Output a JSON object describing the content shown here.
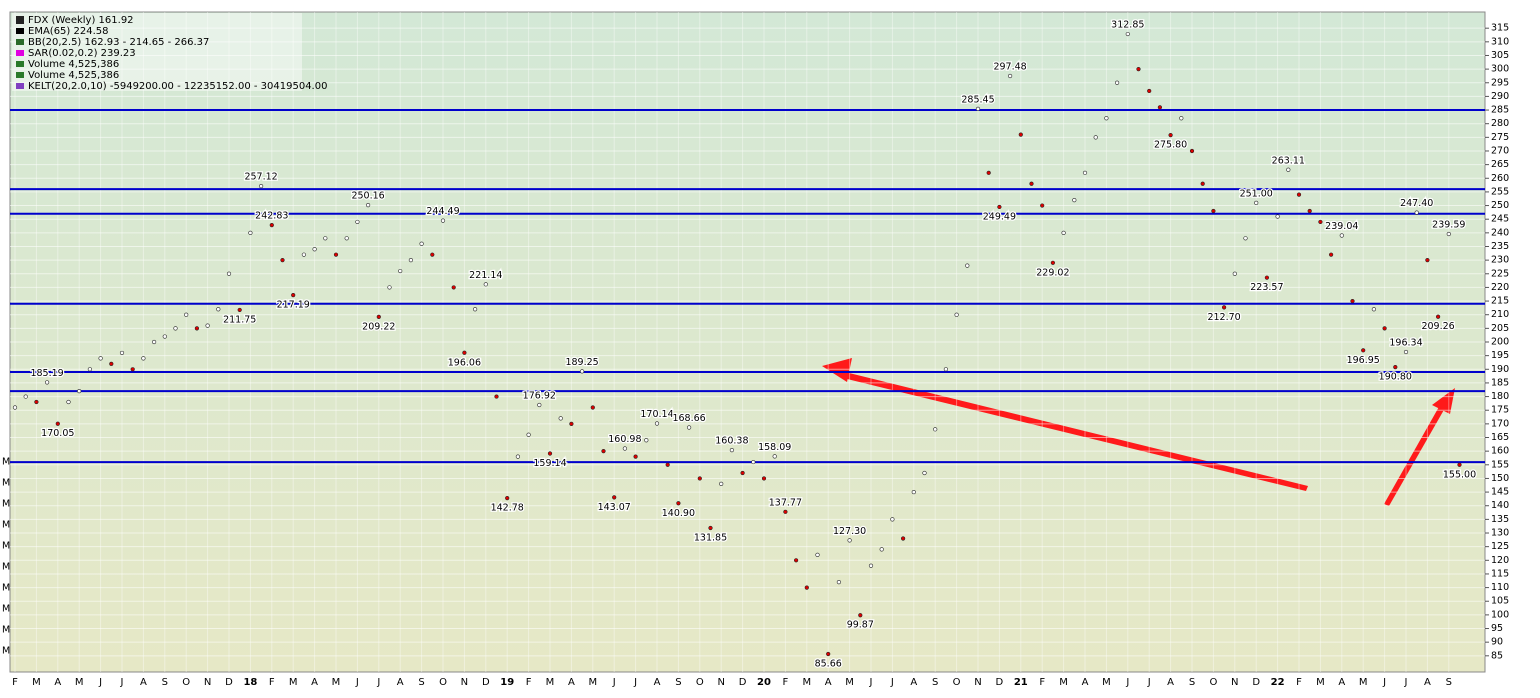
{
  "chart_data": {
    "type": "line",
    "categories": [
      "F",
      null,
      "M",
      null,
      "A",
      null,
      "M",
      null,
      "J",
      null,
      "J",
      null,
      "A",
      null,
      "S",
      null,
      "O",
      null,
      "N",
      null,
      "D",
      null,
      "18",
      null,
      "F",
      null,
      "M",
      null,
      "A",
      null,
      "M",
      null,
      "J",
      null,
      "J",
      null,
      "A",
      null,
      "S",
      null,
      "O",
      null,
      "N",
      null,
      "D",
      null,
      "19",
      null,
      "F",
      null,
      "M",
      null,
      "A",
      null,
      "M",
      null,
      "J",
      null,
      "J",
      null,
      "A",
      null,
      "S",
      null,
      "O",
      null,
      "N",
      null,
      "D",
      null,
      "20",
      null,
      "F",
      null,
      "M",
      null,
      "A",
      null,
      "M",
      null,
      "J",
      null,
      "J",
      null,
      "A",
      null,
      "S",
      null,
      "O",
      null,
      "N",
      null,
      "D",
      null,
      "21",
      null,
      "F",
      null,
      "M",
      null,
      "A",
      null,
      "M",
      null,
      "J",
      null,
      "J",
      null,
      "A",
      null,
      "S",
      null,
      "O",
      null,
      "N",
      null,
      "D",
      null,
      "22",
      null,
      "F",
      null,
      "M",
      null,
      "A",
      null,
      "M",
      null,
      "J",
      null,
      "J",
      null,
      "A",
      null,
      "S",
      null
    ],
    "series": [
      {
        "name": "FDX (Weekly) 161.92",
        "color": "#222222",
        "values": [
          176,
          180,
          178,
          185.19,
          170.05,
          178,
          182,
          190,
          194,
          192,
          196,
          190,
          194,
          200,
          202,
          205,
          210,
          205,
          206,
          212,
          225,
          211.75,
          240,
          257.12,
          242.83,
          230,
          217.19,
          232,
          234,
          238,
          232,
          238,
          244,
          250.16,
          209.22,
          220,
          226,
          230,
          236,
          232,
          244.49,
          220,
          196.06,
          212,
          221.14,
          180,
          142.78,
          158,
          166,
          176.92,
          159.14,
          172,
          170,
          189.25,
          176,
          160,
          143.07,
          160.98,
          158,
          164,
          170.14,
          155,
          140.9,
          168.66,
          150,
          131.85,
          148,
          160.38,
          152,
          156,
          150,
          158.09,
          137.77,
          120,
          110,
          122,
          85.66,
          112,
          127.3,
          99.87,
          118,
          124,
          135,
          128,
          145,
          152,
          168,
          190,
          210,
          228,
          285.45,
          262,
          249.49,
          297.48,
          276,
          258,
          250,
          229.02,
          240,
          252,
          262,
          275,
          282,
          295,
          312.85,
          300,
          292,
          286,
          275.8,
          282,
          270,
          258,
          248,
          212.7,
          225,
          238,
          251.0,
          223.57,
          246,
          263.11,
          254,
          248,
          244,
          232,
          239.04,
          215,
          196.95,
          212,
          205,
          190.8,
          196.34,
          247.4,
          230,
          209.26,
          239.59,
          155.0
        ],
        "value_labels": [
          null,
          null,
          null,
          "185.19",
          "170.05",
          null,
          null,
          null,
          null,
          null,
          null,
          null,
          null,
          null,
          null,
          null,
          null,
          null,
          null,
          null,
          null,
          "211.75",
          null,
          "257.12",
          "242.83",
          null,
          "217.19",
          null,
          null,
          null,
          null,
          null,
          null,
          "250.16",
          "209.22",
          null,
          null,
          null,
          null,
          null,
          "244.49",
          null,
          "196.06",
          null,
          "221.14",
          null,
          "142.78",
          null,
          null,
          "176.92",
          "159.14",
          null,
          null,
          "189.25",
          null,
          null,
          "143.07",
          "160.98",
          null,
          null,
          "170.14",
          null,
          "140.90",
          "168.66",
          null,
          "131.85",
          null,
          "160.38",
          null,
          null,
          null,
          "158.09",
          "137.77",
          null,
          null,
          null,
          "85.66",
          null,
          "127.30",
          "99.87",
          null,
          null,
          null,
          null,
          null,
          null,
          null,
          null,
          null,
          null,
          "285.45",
          null,
          "249.49",
          "297.48",
          null,
          null,
          null,
          "229.02",
          null,
          null,
          null,
          null,
          null,
          null,
          "312.85",
          null,
          null,
          null,
          "275.80",
          null,
          null,
          null,
          null,
          "212.70",
          null,
          null,
          "251.00",
          "223.57",
          null,
          "263.11",
          null,
          null,
          null,
          null,
          "239.04",
          null,
          "196.95",
          null,
          null,
          "190.80",
          "196.34",
          "247.40",
          null,
          "209.26",
          "239.59",
          "155.00"
        ]
      }
    ],
    "legend_extra": [
      "EMA(65) 224.58",
      "BB(20,2.5) 162.93 - 214.65 - 266.37",
      "SAR(0.02,0.2) 239.23",
      "Volume 4,525,386",
      "Volume 4,525,386",
      "KELT(20,2.0,10) -5949200.00 - 12235152.00 - 30419504.00"
    ],
    "volume_axis_labels": [
      "M",
      "M",
      "M",
      "M",
      "M",
      "M",
      "M",
      "M",
      "M",
      "M"
    ],
    "horizontal_lines": [
      285,
      256,
      247,
      214,
      189,
      182,
      156
    ],
    "horizontal_line_color": "#0000cc",
    "ylim": [
      82,
      318
    ],
    "yticks": [
      85,
      90,
      95,
      100,
      105,
      110,
      115,
      120,
      125,
      130,
      135,
      140,
      145,
      150,
      155,
      160,
      165,
      170,
      175,
      180,
      185,
      190,
      195,
      200,
      205,
      210,
      215,
      220,
      225,
      230,
      235,
      240,
      245,
      250,
      255,
      260,
      265,
      270,
      275,
      280,
      285,
      290,
      295,
      300,
      305,
      310,
      315
    ],
    "grid": true
  }
}
